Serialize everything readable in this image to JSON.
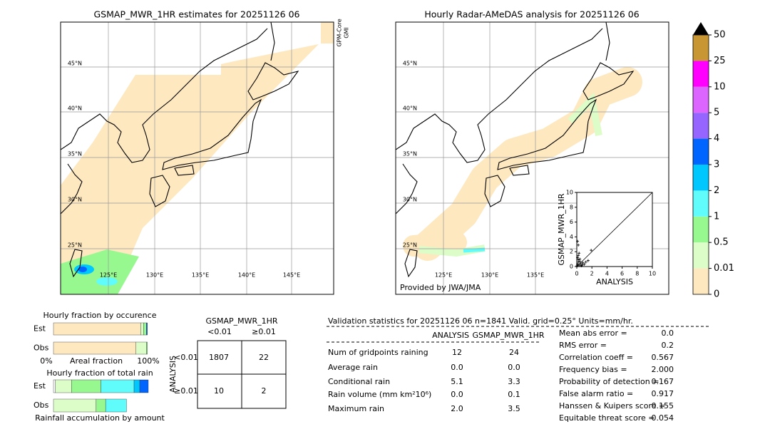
{
  "left_map": {
    "title": "GSMAP_MWR_1HR estimates for 20251126 06",
    "sensor_labels": [
      "GPM-Core",
      "GMI"
    ],
    "lat_labels": [
      "45°N",
      "40°N",
      "35°N",
      "30°N",
      "25°N"
    ],
    "lon_labels": [
      "125°E",
      "130°E",
      "135°E",
      "140°E",
      "145°E"
    ]
  },
  "right_map": {
    "title": "Hourly Radar-AMeDAS analysis for 20251126 06",
    "lat_labels": [
      "45°N",
      "40°N",
      "35°N",
      "30°N",
      "25°N"
    ],
    "lon_labels": [
      "125°E",
      "130°E",
      "135°E"
    ],
    "credit": "Provided by JWA/JMA"
  },
  "colorbar": {
    "levels": [
      0,
      0.01,
      0.5,
      1,
      2,
      3,
      4,
      5,
      10,
      25,
      50
    ],
    "colors": [
      "#fee8c0",
      "#dcfcc8",
      "#98f890",
      "#60fcfc",
      "#00c8ff",
      "#0064ff",
      "#9664ff",
      "#dc64ff",
      "#ff00ff",
      "#c89632"
    ]
  },
  "scatter": {
    "xlabel": "ANALYSIS",
    "ylabel": "GSMAP_MWR_1HR",
    "xlim": [
      0,
      10
    ],
    "ylim": [
      0,
      10
    ],
    "xticks": [
      0,
      2,
      4,
      6,
      8,
      10
    ],
    "yticks": [
      0,
      2,
      4,
      6,
      8,
      10
    ],
    "x": [
      0.1,
      0.2,
      0.3,
      0.1,
      0.4,
      0.2,
      0.5,
      0.8,
      1.2,
      1.5,
      1.9,
      0.3,
      0.6,
      0.1,
      0.2,
      0.4,
      1.0,
      0.7,
      0.2,
      0.05
    ],
    "y": [
      3.4,
      2.9,
      1.8,
      1.2,
      1.0,
      0.6,
      0.4,
      0.5,
      0.6,
      0.8,
      2.2,
      0.2,
      0.1,
      0.3,
      1.5,
      0.7,
      0.3,
      0.2,
      0.9,
      0.1
    ]
  },
  "occurrence": {
    "title": "Hourly fraction by occurence",
    "rows": [
      "Est",
      "Obs"
    ],
    "axis_labels": [
      "0%",
      "Areal fraction",
      "100%"
    ],
    "series": [
      {
        "color": "#fee8c0",
        "values": [
          0.92,
          0.87
        ]
      },
      {
        "color": "#dcfcc8",
        "values": [
          0.03,
          0.11
        ]
      },
      {
        "color": "#98f890",
        "values": [
          0.03,
          0.01
        ]
      },
      {
        "color": "#0064ff",
        "values": [
          0.01,
          0
        ]
      }
    ]
  },
  "total_rain": {
    "title": "Hourly fraction of total rain",
    "rows": [
      "Est",
      "Obs"
    ],
    "caption": "Rainfall accumulation by amount",
    "series": [
      {
        "color": "#ffffff",
        "values": [
          0.02,
          0
        ]
      },
      {
        "color": "#dcfcc8",
        "values": [
          0.17,
          0.45
        ]
      },
      {
        "color": "#98f890",
        "values": [
          0.31,
          0.1
        ]
      },
      {
        "color": "#60fcfc",
        "values": [
          0.35,
          0.22
        ]
      },
      {
        "color": "#00c8ff",
        "values": [
          0.06,
          0
        ]
      },
      {
        "color": "#0064ff",
        "values": [
          0.09,
          0
        ]
      }
    ]
  },
  "contingency": {
    "title": "GSMAP_MWR_1HR",
    "columns": [
      "<0.01",
      "≥0.01"
    ],
    "row_title": "ANALYSIS",
    "rows": [
      "<0.01",
      "≥0.01"
    ],
    "cells": [
      [
        "1807",
        "22"
      ],
      [
        "10",
        "2"
      ]
    ]
  },
  "validation": {
    "title": "Validation statistics for 20251126 06  n=1841 Valid. grid=0.25° Units=mm/hr.",
    "headers": [
      "ANALYSIS",
      "GSMAP_MWR_1HR"
    ],
    "rows": [
      [
        "Num of gridpoints raining",
        "12",
        "24"
      ],
      [
        "Average rain",
        "0.0",
        "0.0"
      ],
      [
        "Conditional rain",
        "5.1",
        "3.3"
      ],
      [
        "Rain volume (mm km²10⁶)",
        "0.0",
        "0.1"
      ],
      [
        "Maximum rain",
        "2.0",
        "3.5"
      ]
    ],
    "scores": [
      [
        "Mean abs error =",
        "0.0"
      ],
      [
        "RMS error =",
        "0.2"
      ],
      [
        "Correlation coeff =",
        "0.567"
      ],
      [
        "Frequency bias =",
        "2.000"
      ],
      [
        "Probability of detection =",
        "0.167"
      ],
      [
        "False alarm ratio =",
        "0.917"
      ],
      [
        "Hanssen & Kuipers score =",
        "0.155"
      ],
      [
        "Equitable threat score =",
        "0.054"
      ]
    ]
  }
}
